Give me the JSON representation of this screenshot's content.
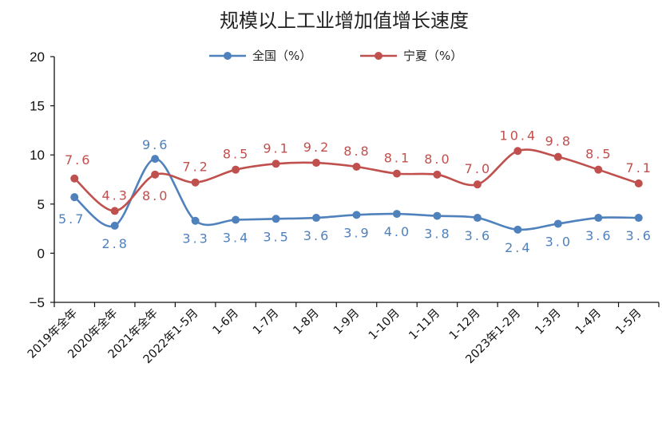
{
  "chart_data": {
    "type": "line",
    "title": "规模以上工业增加值增长速度",
    "categories": [
      "2019年全年",
      "2020年全年",
      "2021年全年",
      "2022年1-5月",
      "1-6月",
      "1-7月",
      "1-8月",
      "1-9月",
      "1-10月",
      "1-11月",
      "1-12月",
      "2023年1-2月",
      "1-3月",
      "1-4月",
      "1-5月"
    ],
    "series": [
      {
        "name": "全国（%）",
        "color": "#4f81bd",
        "values": [
          5.7,
          2.8,
          9.6,
          3.3,
          3.4,
          3.5,
          3.6,
          3.9,
          4.0,
          3.8,
          3.6,
          2.4,
          3.0,
          3.6,
          3.6
        ],
        "labels": [
          "5.7",
          "2.8",
          "9.6",
          "3.3",
          "3.4",
          "3.5",
          "3.6",
          "3.9",
          "4.0",
          "3.8",
          "3.6",
          "2.4",
          "3.0",
          "3.6",
          "3.6"
        ]
      },
      {
        "name": "宁夏（%）",
        "color": "#c0504d",
        "values": [
          7.6,
          4.3,
          8.0,
          7.2,
          8.5,
          9.1,
          9.2,
          8.8,
          8.1,
          8.0,
          7.0,
          10.4,
          9.8,
          8.5,
          7.1
        ],
        "labels": [
          "7.6",
          "4.3",
          "8.0",
          "7.2",
          "8.5",
          "9.1",
          "9.2",
          "8.8",
          "8.1",
          "8.0",
          "7.0",
          "10.4",
          "9.8",
          "8.5",
          "7.1"
        ]
      }
    ],
    "xlabel": "",
    "ylabel": "",
    "ylim": [
      -5,
      20
    ],
    "yticks": [
      "20",
      "15",
      "10",
      "5",
      "0",
      "−5"
    ],
    "grid": false,
    "legend": "top-center",
    "smooth": true
  }
}
